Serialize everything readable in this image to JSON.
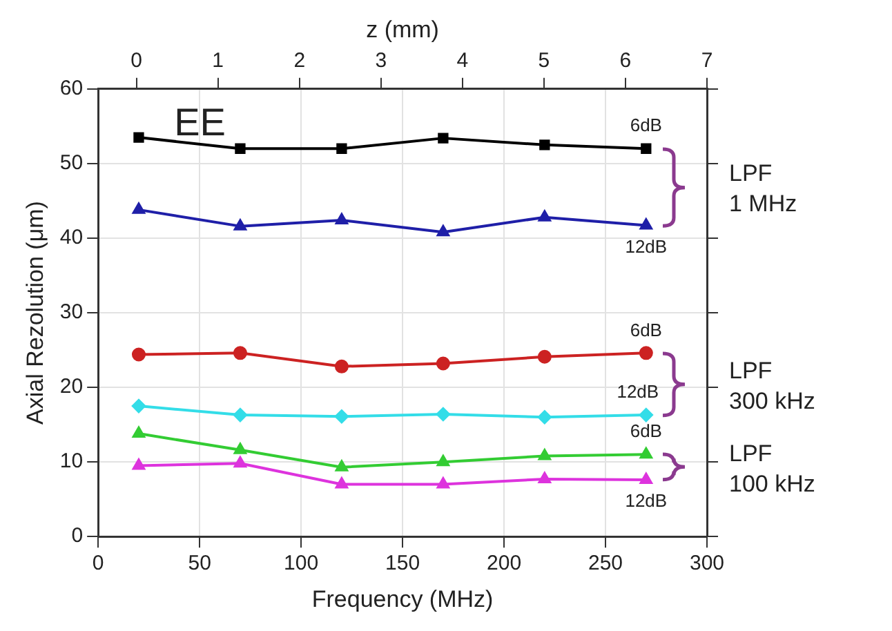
{
  "chart_data": {
    "type": "line",
    "xlabel": "Frequency (MHz)",
    "ylabel": "Axial Rezolution (μm)",
    "x2label": "z (mm)",
    "x": [
      20,
      70,
      120,
      170,
      220,
      270
    ],
    "xlim": [
      0,
      300
    ],
    "xticks": [
      0,
      50,
      100,
      150,
      200,
      250,
      300
    ],
    "x2lim": [
      -0.47,
      7
    ],
    "x2ticks": [
      0,
      1,
      2,
      3,
      4,
      5,
      6,
      7
    ],
    "ylim": [
      0,
      60
    ],
    "yticks": [
      0,
      10,
      20,
      30,
      40,
      50,
      60
    ],
    "grid": true,
    "legend": false,
    "line_style": "solid",
    "series": [
      {
        "color": "#000000",
        "marker": "square",
        "values": [
          53.5,
          52,
          52,
          53.4,
          52.5,
          52
        ]
      },
      {
        "color": "#1f1fa8",
        "marker": "triangle",
        "values": [
          43.8,
          41.6,
          42.4,
          40.8,
          42.8,
          41.7
        ]
      },
      {
        "color": "#cc2222",
        "marker": "circle",
        "values": [
          24.4,
          24.6,
          22.8,
          23.2,
          24.1,
          24.6
        ]
      },
      {
        "color": "#33dde8",
        "marker": "diamond",
        "values": [
          17.5,
          16.3,
          16.1,
          16.4,
          16,
          16.3
        ]
      },
      {
        "color": "#33cc33",
        "marker": "triangle",
        "values": [
          13.8,
          11.6,
          9.3,
          10,
          10.8,
          11
        ]
      },
      {
        "color": "#dd33dd",
        "marker": "triangle",
        "values": [
          9.5,
          9.8,
          7,
          7,
          7.7,
          7.6
        ]
      }
    ],
    "annotations": [
      "EE",
      "LPF\n1 MHz",
      "LPF\n300 kHz",
      "LPF\n100 kHz",
      "6dB",
      "12dB",
      "6dB",
      "12dB",
      "6dB",
      "12dB"
    ]
  }
}
